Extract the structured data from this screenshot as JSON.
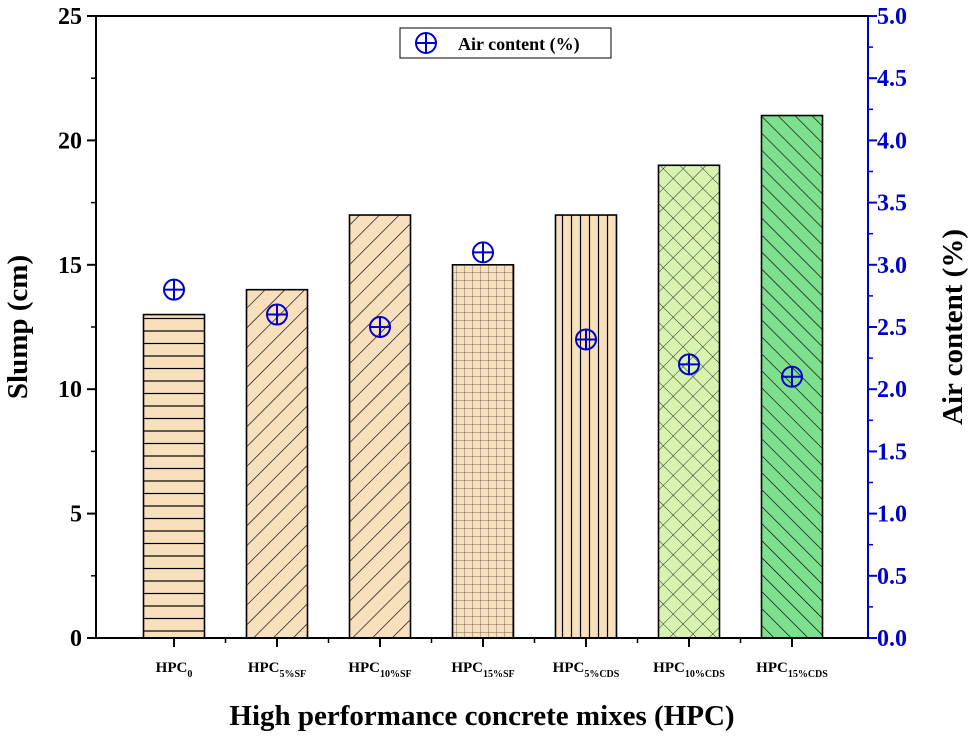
{
  "chart_data": {
    "type": "bar",
    "categories": [
      {
        "base": "HPC",
        "sub": "0"
      },
      {
        "base": "HPC",
        "sub": "5%SF"
      },
      {
        "base": "HPC",
        "sub": "10%SF"
      },
      {
        "base": "HPC",
        "sub": "15%SF"
      },
      {
        "base": "HPC",
        "sub": "5%CDS"
      },
      {
        "base": "HPC",
        "sub": "10%CDS"
      },
      {
        "base": "HPC",
        "sub": "15%CDS"
      }
    ],
    "series": [
      {
        "name": "Slump (cm)",
        "type": "bar",
        "axis": "left",
        "values": [
          13,
          14,
          17,
          15,
          17,
          19,
          21
        ],
        "fills": [
          "#f9e0bd",
          "#f9e0bd",
          "#f9e0bd",
          "#f9e0bd",
          "#f9e0bd",
          "#d8f3b0",
          "#7ee08e"
        ],
        "patterns": [
          "horizontal",
          "diagonal-up",
          "diagonal-up",
          "grid",
          "vertical",
          "crosshatch",
          "diagonal-down"
        ]
      },
      {
        "name": "Air content (%)",
        "type": "scatter",
        "axis": "right",
        "marker": "circle-plus",
        "color": "#0000cc",
        "values": [
          2.8,
          2.6,
          2.5,
          3.1,
          2.4,
          2.2,
          2.1
        ]
      }
    ],
    "xlabel": "High performance concrete mixes (HPC)",
    "ylabel": "Slump (cm)",
    "ylabel_right": "Air content (%)",
    "ylim": [
      0,
      25
    ],
    "yticks": [
      "0",
      "5",
      "10",
      "15",
      "20",
      "25"
    ],
    "ylim_right": [
      0,
      5
    ],
    "yticks_right": [
      "0.0",
      "0.5",
      "1.0",
      "1.5",
      "2.0",
      "2.5",
      "3.0",
      "3.5",
      "4.0",
      "4.5",
      "5.0"
    ],
    "legend": {
      "label": "Air content (%)",
      "position": "top-center"
    },
    "grid": false
  }
}
